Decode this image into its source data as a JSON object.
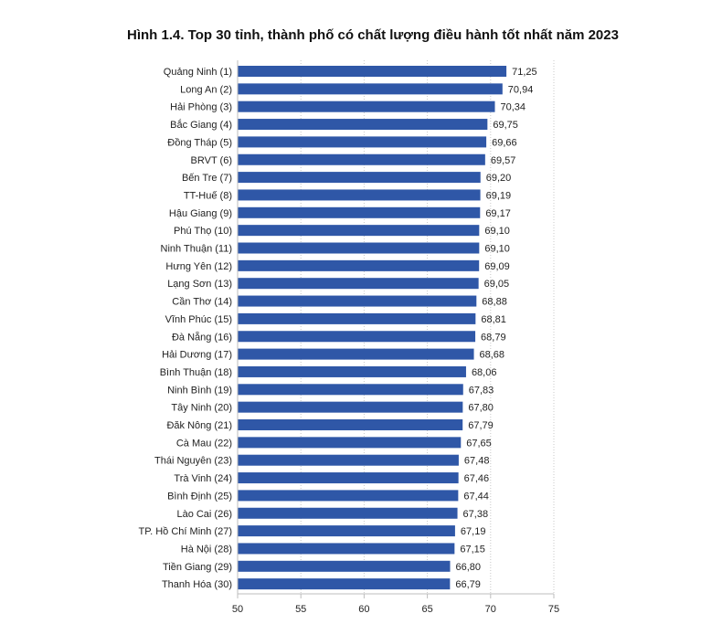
{
  "chart_data": {
    "type": "bar",
    "orientation": "horizontal",
    "title": "Hình 1.4. Top 30 tỉnh, thành phố có chất lượng điều hành tốt nhất năm 2023",
    "xlabel": "",
    "ylabel": "",
    "xlim": [
      50,
      75
    ],
    "xticks": [
      "50",
      "55",
      "60",
      "65",
      "70",
      "75"
    ],
    "grid": "vertical-dotted",
    "bar_color": "#2f57a7",
    "categories": [
      "Quảng Ninh (1)",
      "Long An (2)",
      "Hải Phòng (3)",
      "Bắc Giang (4)",
      "Đồng Tháp (5)",
      "BRVT (6)",
      "Bến Tre (7)",
      "TT-Huế (8)",
      "Hậu Giang (9)",
      "Phú Thọ (10)",
      "Ninh Thuận (11)",
      "Hưng Yên (12)",
      "Lạng Sơn (13)",
      "Cần Thơ (14)",
      "Vĩnh Phúc (15)",
      "Đà Nẵng (16)",
      "Hải Dương (17)",
      "Bình Thuận (18)",
      "Ninh Bình (19)",
      "Tây Ninh (20)",
      "Đăk Nông (21)",
      "Cà Mau (22)",
      "Thái Nguyên (23)",
      "Trà Vinh (24)",
      "Bình Định (25)",
      "Lào Cai (26)",
      "TP. Hồ Chí Minh (27)",
      "Hà Nội (28)",
      "Tiền Giang (29)",
      "Thanh Hóa (30)"
    ],
    "values": [
      71.25,
      70.94,
      70.34,
      69.75,
      69.66,
      69.57,
      69.2,
      69.19,
      69.17,
      69.1,
      69.1,
      69.09,
      69.05,
      68.88,
      68.81,
      68.79,
      68.68,
      68.06,
      67.83,
      67.8,
      67.79,
      67.65,
      67.48,
      67.46,
      67.44,
      67.38,
      67.19,
      67.15,
      66.8,
      66.79
    ],
    "value_labels": [
      "71,25",
      "70,94",
      "70,34",
      "69,75",
      "69,66",
      "69,57",
      "69,20",
      "69,19",
      "69,17",
      "69,10",
      "69,10",
      "69,09",
      "69,05",
      "68,88",
      "68,81",
      "68,79",
      "68,68",
      "68,06",
      "67,83",
      "67,80",
      "67,79",
      "67,65",
      "67,48",
      "67,46",
      "67,44",
      "67,38",
      "67,19",
      "67,15",
      "66,80",
      "66,79"
    ]
  }
}
